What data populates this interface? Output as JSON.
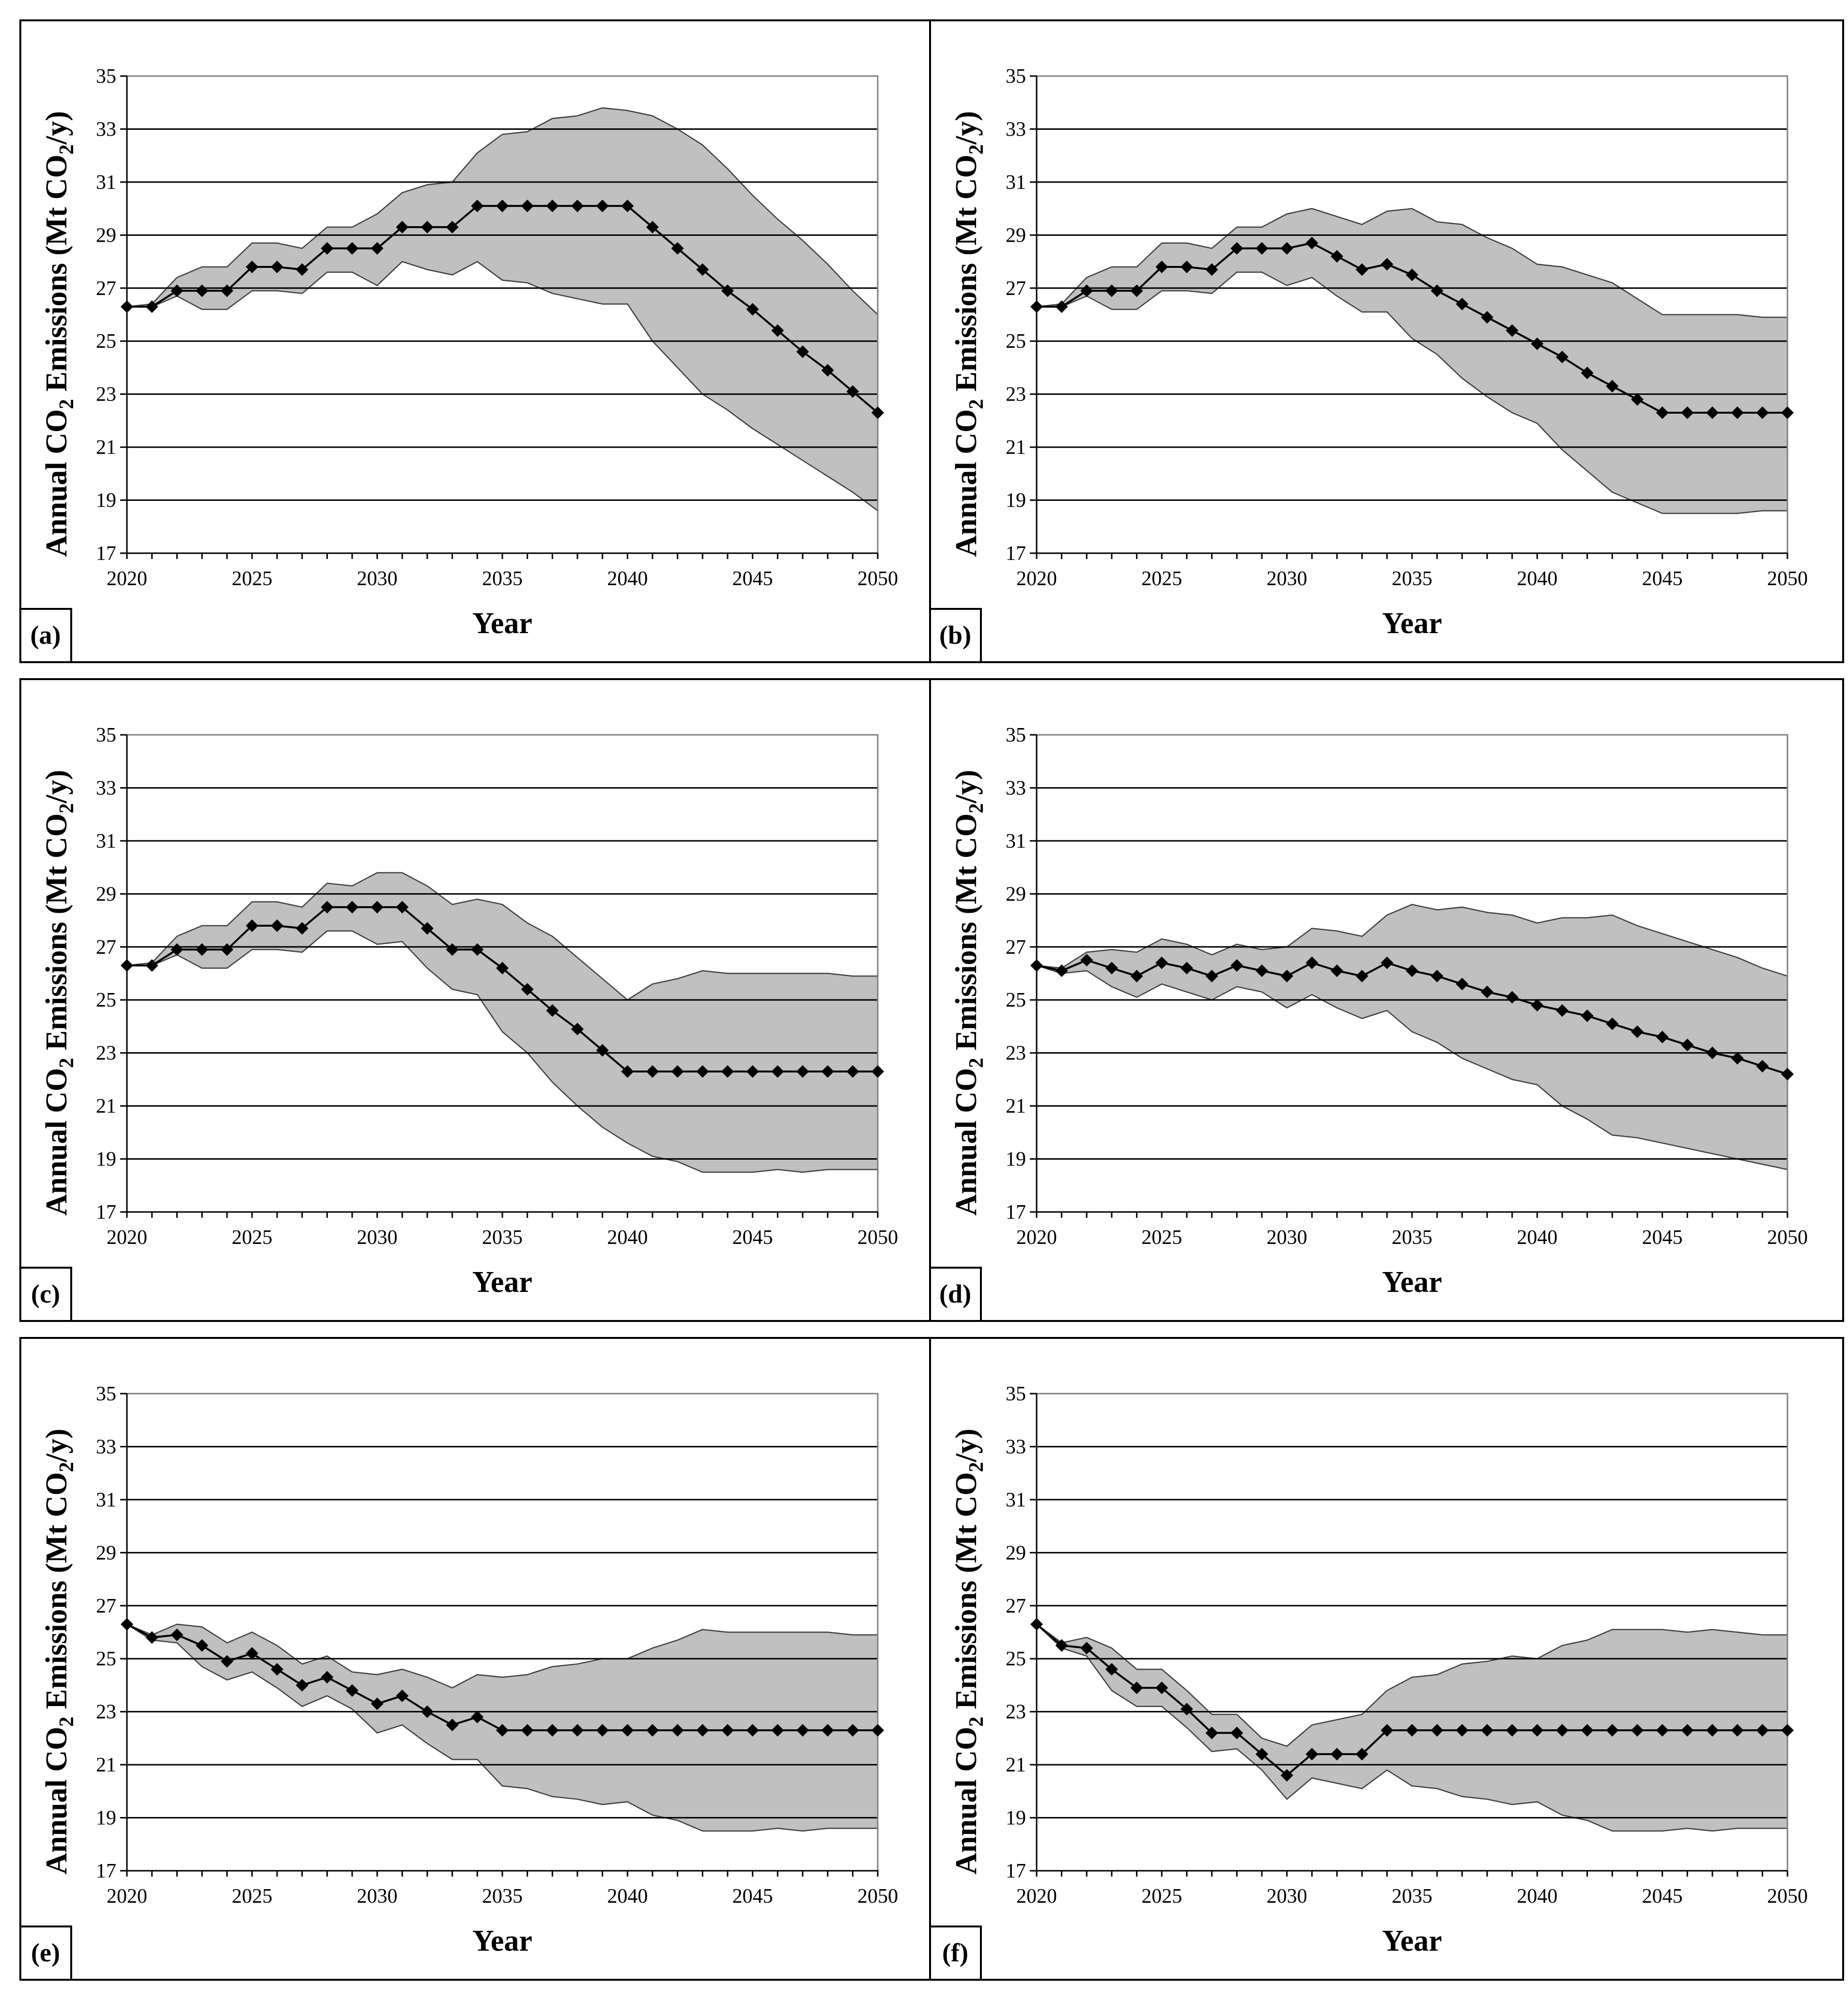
{
  "chart_data": [
    {
      "type": "line",
      "panel_label": "(a)",
      "xlabel": "Year",
      "ylabel_parts": [
        "Annual CO",
        "2",
        " Emissions (Mt CO",
        "2",
        "/y)"
      ],
      "ylim": [
        17,
        35
      ],
      "yticks": [
        17,
        19,
        21,
        23,
        25,
        27,
        29,
        31,
        33,
        35
      ],
      "xlim": [
        2020,
        2050
      ],
      "xticks": [
        2020,
        2025,
        2030,
        2035,
        2040,
        2045,
        2050
      ],
      "grid": "horizontal",
      "x": [
        2020,
        2021,
        2022,
        2023,
        2024,
        2025,
        2026,
        2027,
        2028,
        2029,
        2030,
        2031,
        2032,
        2033,
        2034,
        2035,
        2036,
        2037,
        2038,
        2039,
        2040,
        2041,
        2042,
        2043,
        2044,
        2045,
        2046,
        2047,
        2048,
        2049,
        2050
      ],
      "series": [
        {
          "name": "central",
          "values": [
            26.3,
            26.3,
            26.9,
            26.9,
            26.9,
            27.8,
            27.8,
            27.7,
            28.5,
            28.5,
            28.5,
            29.3,
            29.3,
            29.3,
            30.1,
            30.1,
            30.1,
            30.1,
            30.1,
            30.1,
            30.1,
            29.3,
            28.5,
            27.7,
            26.9,
            26.2,
            25.4,
            24.6,
            23.9,
            23.1,
            22.3
          ]
        },
        {
          "name": "upper",
          "values": [
            26.3,
            26.4,
            27.4,
            27.8,
            27.8,
            28.7,
            28.7,
            28.5,
            29.3,
            29.3,
            29.8,
            30.6,
            30.9,
            31.0,
            32.1,
            32.8,
            32.9,
            33.4,
            33.5,
            33.8,
            33.7,
            33.5,
            33.0,
            32.4,
            31.5,
            30.5,
            29.6,
            28.8,
            27.9,
            26.9,
            26.0
          ]
        },
        {
          "name": "lower",
          "values": [
            26.3,
            26.3,
            26.7,
            26.2,
            26.2,
            26.9,
            26.9,
            26.8,
            27.6,
            27.6,
            27.1,
            28.0,
            27.7,
            27.5,
            28.0,
            27.3,
            27.2,
            26.8,
            26.6,
            26.4,
            26.4,
            25.0,
            24.0,
            23.0,
            22.4,
            21.7,
            21.1,
            20.5,
            19.9,
            19.3,
            18.6
          ]
        }
      ]
    },
    {
      "type": "line",
      "panel_label": "(b)",
      "xlabel": "Year",
      "ylabel_parts": [
        "Annual CO",
        "2",
        " Emissions (Mt CO",
        "2",
        "/y)"
      ],
      "ylim": [
        17,
        35
      ],
      "yticks": [
        17,
        19,
        21,
        23,
        25,
        27,
        29,
        31,
        33,
        35
      ],
      "xlim": [
        2020,
        2050
      ],
      "xticks": [
        2020,
        2025,
        2030,
        2035,
        2040,
        2045,
        2050
      ],
      "grid": "horizontal",
      "x": [
        2020,
        2021,
        2022,
        2023,
        2024,
        2025,
        2026,
        2027,
        2028,
        2029,
        2030,
        2031,
        2032,
        2033,
        2034,
        2035,
        2036,
        2037,
        2038,
        2039,
        2040,
        2041,
        2042,
        2043,
        2044,
        2045,
        2046,
        2047,
        2048,
        2049,
        2050
      ],
      "series": [
        {
          "name": "central",
          "values": [
            26.3,
            26.3,
            26.9,
            26.9,
            26.9,
            27.8,
            27.8,
            27.7,
            28.5,
            28.5,
            28.5,
            28.7,
            28.2,
            27.7,
            27.9,
            27.5,
            26.9,
            26.4,
            25.9,
            25.4,
            24.9,
            24.4,
            23.8,
            23.3,
            22.8,
            22.3,
            22.3,
            22.3,
            22.3,
            22.3,
            22.3
          ]
        },
        {
          "name": "upper",
          "values": [
            26.3,
            26.4,
            27.4,
            27.8,
            27.8,
            28.7,
            28.7,
            28.5,
            29.3,
            29.3,
            29.8,
            30.0,
            29.7,
            29.4,
            29.9,
            30.0,
            29.5,
            29.4,
            28.9,
            28.5,
            27.9,
            27.8,
            27.5,
            27.2,
            26.6,
            26.0,
            26.0,
            26.0,
            26.0,
            25.9,
            25.9
          ]
        },
        {
          "name": "lower",
          "values": [
            26.3,
            26.3,
            26.7,
            26.2,
            26.2,
            26.9,
            26.9,
            26.8,
            27.6,
            27.6,
            27.1,
            27.4,
            26.7,
            26.1,
            26.1,
            25.1,
            24.5,
            23.6,
            22.9,
            22.3,
            21.9,
            20.9,
            20.1,
            19.3,
            18.9,
            18.5,
            18.5,
            18.5,
            18.5,
            18.6,
            18.6
          ]
        }
      ]
    },
    {
      "type": "line",
      "panel_label": "(c)",
      "xlabel": "Year",
      "ylabel_parts": [
        "Annual CO",
        "2",
        " Emissions (Mt CO",
        "2",
        "/y)"
      ],
      "ylim": [
        17,
        35
      ],
      "yticks": [
        17,
        19,
        21,
        23,
        25,
        27,
        29,
        31,
        33,
        35
      ],
      "xlim": [
        2020,
        2050
      ],
      "xticks": [
        2020,
        2025,
        2030,
        2035,
        2040,
        2045,
        2050
      ],
      "grid": "horizontal",
      "x": [
        2020,
        2021,
        2022,
        2023,
        2024,
        2025,
        2026,
        2027,
        2028,
        2029,
        2030,
        2031,
        2032,
        2033,
        2034,
        2035,
        2036,
        2037,
        2038,
        2039,
        2040,
        2041,
        2042,
        2043,
        2044,
        2045,
        2046,
        2047,
        2048,
        2049,
        2050
      ],
      "series": [
        {
          "name": "central",
          "values": [
            26.3,
            26.3,
            26.9,
            26.9,
            26.9,
            27.8,
            27.8,
            27.7,
            28.5,
            28.5,
            28.5,
            28.5,
            27.7,
            26.9,
            26.9,
            26.2,
            25.4,
            24.6,
            23.9,
            23.1,
            22.3,
            22.3,
            22.3,
            22.3,
            22.3,
            22.3,
            22.3,
            22.3,
            22.3,
            22.3,
            22.3
          ]
        },
        {
          "name": "upper",
          "values": [
            26.3,
            26.4,
            27.4,
            27.8,
            27.8,
            28.7,
            28.7,
            28.5,
            29.4,
            29.3,
            29.8,
            29.8,
            29.3,
            28.6,
            28.8,
            28.6,
            27.9,
            27.4,
            26.6,
            25.8,
            25.0,
            25.6,
            25.8,
            26.1,
            26.0,
            26.0,
            26.0,
            26.0,
            26.0,
            25.9,
            25.9
          ]
        },
        {
          "name": "lower",
          "values": [
            26.3,
            26.3,
            26.7,
            26.2,
            26.2,
            26.9,
            26.9,
            26.8,
            27.6,
            27.6,
            27.1,
            27.2,
            26.2,
            25.4,
            25.2,
            23.8,
            23.0,
            21.9,
            21.0,
            20.2,
            19.6,
            19.1,
            18.9,
            18.5,
            18.5,
            18.5,
            18.6,
            18.5,
            18.6,
            18.6,
            18.6
          ]
        }
      ]
    },
    {
      "type": "line",
      "panel_label": "(d)",
      "xlabel": "Year",
      "ylabel_parts": [
        "Annual CO",
        "2",
        " Emissions (Mt CO",
        "2",
        "/y)"
      ],
      "ylim": [
        17,
        35
      ],
      "yticks": [
        17,
        19,
        21,
        23,
        25,
        27,
        29,
        31,
        33,
        35
      ],
      "xlim": [
        2020,
        2050
      ],
      "xticks": [
        2020,
        2025,
        2030,
        2035,
        2040,
        2045,
        2050
      ],
      "grid": "horizontal",
      "x": [
        2020,
        2021,
        2022,
        2023,
        2024,
        2025,
        2026,
        2027,
        2028,
        2029,
        2030,
        2031,
        2032,
        2033,
        2034,
        2035,
        2036,
        2037,
        2038,
        2039,
        2040,
        2041,
        2042,
        2043,
        2044,
        2045,
        2046,
        2047,
        2048,
        2049,
        2050
      ],
      "series": [
        {
          "name": "central",
          "values": [
            26.3,
            26.1,
            26.5,
            26.2,
            25.9,
            26.4,
            26.2,
            25.9,
            26.3,
            26.1,
            25.9,
            26.4,
            26.1,
            25.9,
            26.4,
            26.1,
            25.9,
            25.6,
            25.3,
            25.1,
            24.8,
            24.6,
            24.4,
            24.1,
            23.8,
            23.6,
            23.3,
            23.0,
            22.8,
            22.5,
            22.2
          ]
        },
        {
          "name": "upper",
          "values": [
            26.3,
            26.2,
            26.8,
            26.9,
            26.8,
            27.3,
            27.1,
            26.7,
            27.1,
            26.9,
            27.0,
            27.7,
            27.6,
            27.4,
            28.2,
            28.6,
            28.4,
            28.5,
            28.3,
            28.2,
            27.9,
            28.1,
            28.1,
            28.2,
            27.8,
            27.5,
            27.2,
            26.9,
            26.6,
            26.2,
            25.9
          ]
        },
        {
          "name": "lower",
          "values": [
            26.3,
            26.0,
            26.1,
            25.5,
            25.1,
            25.6,
            25.3,
            25.0,
            25.5,
            25.3,
            24.7,
            25.2,
            24.7,
            24.3,
            24.6,
            23.8,
            23.4,
            22.8,
            22.4,
            22.0,
            21.8,
            21.0,
            20.5,
            19.9,
            19.8,
            19.6,
            19.4,
            19.2,
            19.0,
            18.8,
            18.6
          ]
        }
      ]
    },
    {
      "type": "line",
      "panel_label": "(e)",
      "xlabel": "Year",
      "ylabel_parts": [
        "Annual CO",
        "2",
        " Emissions (Mt CO",
        "2",
        "/y)"
      ],
      "ylim": [
        17,
        35
      ],
      "yticks": [
        17,
        19,
        21,
        23,
        25,
        27,
        29,
        31,
        33,
        35
      ],
      "xlim": [
        2020,
        2050
      ],
      "xticks": [
        2020,
        2025,
        2030,
        2035,
        2040,
        2045,
        2050
      ],
      "grid": "horizontal",
      "x": [
        2020,
        2021,
        2022,
        2023,
        2024,
        2025,
        2026,
        2027,
        2028,
        2029,
        2030,
        2031,
        2032,
        2033,
        2034,
        2035,
        2036,
        2037,
        2038,
        2039,
        2040,
        2041,
        2042,
        2043,
        2044,
        2045,
        2046,
        2047,
        2048,
        2049,
        2050
      ],
      "series": [
        {
          "name": "central",
          "values": [
            26.3,
            25.8,
            25.9,
            25.5,
            24.9,
            25.2,
            24.6,
            24.0,
            24.3,
            23.8,
            23.3,
            23.6,
            23.0,
            22.5,
            22.8,
            22.3,
            22.3,
            22.3,
            22.3,
            22.3,
            22.3,
            22.3,
            22.3,
            22.3,
            22.3,
            22.3,
            22.3,
            22.3,
            22.3,
            22.3,
            22.3
          ]
        },
        {
          "name": "upper",
          "values": [
            26.3,
            25.9,
            26.3,
            26.2,
            25.6,
            26.0,
            25.5,
            24.8,
            25.1,
            24.5,
            24.4,
            24.6,
            24.3,
            23.9,
            24.4,
            24.3,
            24.4,
            24.7,
            24.8,
            25.0,
            25.0,
            25.4,
            25.7,
            26.1,
            26.0,
            26.0,
            26.0,
            26.0,
            26.0,
            25.9,
            25.9
          ]
        },
        {
          "name": "lower",
          "values": [
            26.3,
            25.7,
            25.6,
            24.7,
            24.2,
            24.5,
            23.9,
            23.2,
            23.6,
            23.1,
            22.2,
            22.5,
            21.8,
            21.2,
            21.2,
            20.2,
            20.1,
            19.8,
            19.7,
            19.5,
            19.6,
            19.1,
            18.9,
            18.5,
            18.5,
            18.5,
            18.6,
            18.5,
            18.6,
            18.6,
            18.6
          ]
        }
      ]
    },
    {
      "type": "line",
      "panel_label": "(f)",
      "xlabel": "Year",
      "ylabel_parts": [
        "Annual CO",
        "2",
        " Emissions (Mt CO",
        "2",
        "/y)"
      ],
      "ylim": [
        17,
        35
      ],
      "yticks": [
        17,
        19,
        21,
        23,
        25,
        27,
        29,
        31,
        33,
        35
      ],
      "xlim": [
        2020,
        2050
      ],
      "xticks": [
        2020,
        2025,
        2030,
        2035,
        2040,
        2045,
        2050
      ],
      "grid": "horizontal",
      "x": [
        2020,
        2021,
        2022,
        2023,
        2024,
        2025,
        2026,
        2027,
        2028,
        2029,
        2030,
        2031,
        2032,
        2033,
        2034,
        2035,
        2036,
        2037,
        2038,
        2039,
        2040,
        2041,
        2042,
        2043,
        2044,
        2045,
        2046,
        2047,
        2048,
        2049,
        2050
      ],
      "series": [
        {
          "name": "central",
          "values": [
            26.3,
            25.5,
            25.4,
            24.6,
            23.9,
            23.9,
            23.1,
            22.2,
            22.2,
            21.4,
            20.6,
            21.4,
            21.4,
            21.4,
            22.3,
            22.3,
            22.3,
            22.3,
            22.3,
            22.3,
            22.3,
            22.3,
            22.3,
            22.3,
            22.3,
            22.3,
            22.3,
            22.3,
            22.3,
            22.3,
            22.3
          ]
        },
        {
          "name": "upper",
          "values": [
            26.3,
            25.6,
            25.8,
            25.4,
            24.6,
            24.6,
            23.8,
            22.9,
            22.9,
            22.0,
            21.7,
            22.5,
            22.7,
            22.9,
            23.8,
            24.3,
            24.4,
            24.8,
            24.9,
            25.1,
            25.0,
            25.5,
            25.7,
            26.1,
            26.1,
            26.1,
            26.0,
            26.1,
            26.0,
            25.9,
            25.9
          ]
        },
        {
          "name": "lower",
          "values": [
            26.3,
            25.4,
            25.1,
            23.8,
            23.2,
            23.2,
            22.4,
            21.5,
            21.6,
            20.8,
            19.7,
            20.5,
            20.3,
            20.1,
            20.8,
            20.2,
            20.1,
            19.8,
            19.7,
            19.5,
            19.6,
            19.1,
            18.9,
            18.5,
            18.5,
            18.5,
            18.6,
            18.5,
            18.6,
            18.6,
            18.6
          ]
        }
      ]
    }
  ]
}
